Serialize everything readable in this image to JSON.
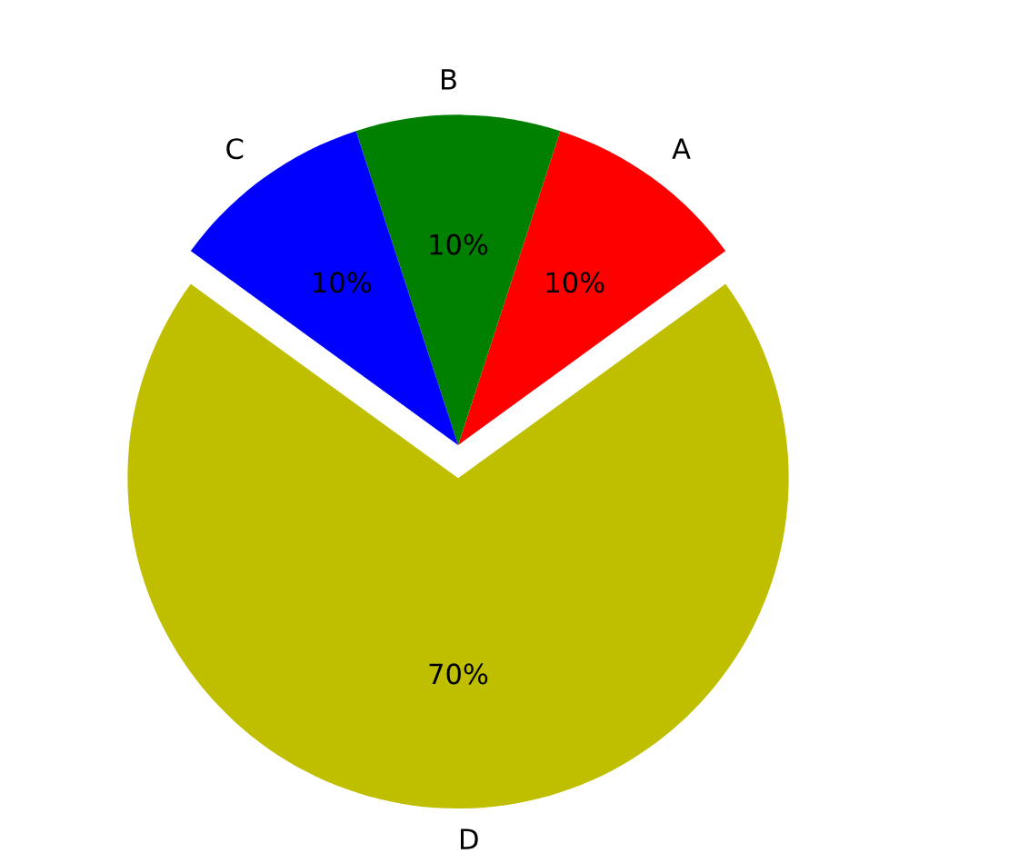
{
  "chart_data": {
    "type": "pie",
    "categories": [
      "A",
      "B",
      "C",
      "D"
    ],
    "values": [
      10,
      10,
      10,
      70
    ],
    "colors": [
      "#ff0000",
      "#008000",
      "#0000ff",
      "#bfbf00"
    ],
    "value_labels": [
      "10%",
      "10%",
      "10%",
      "70%"
    ],
    "legend": false
  }
}
